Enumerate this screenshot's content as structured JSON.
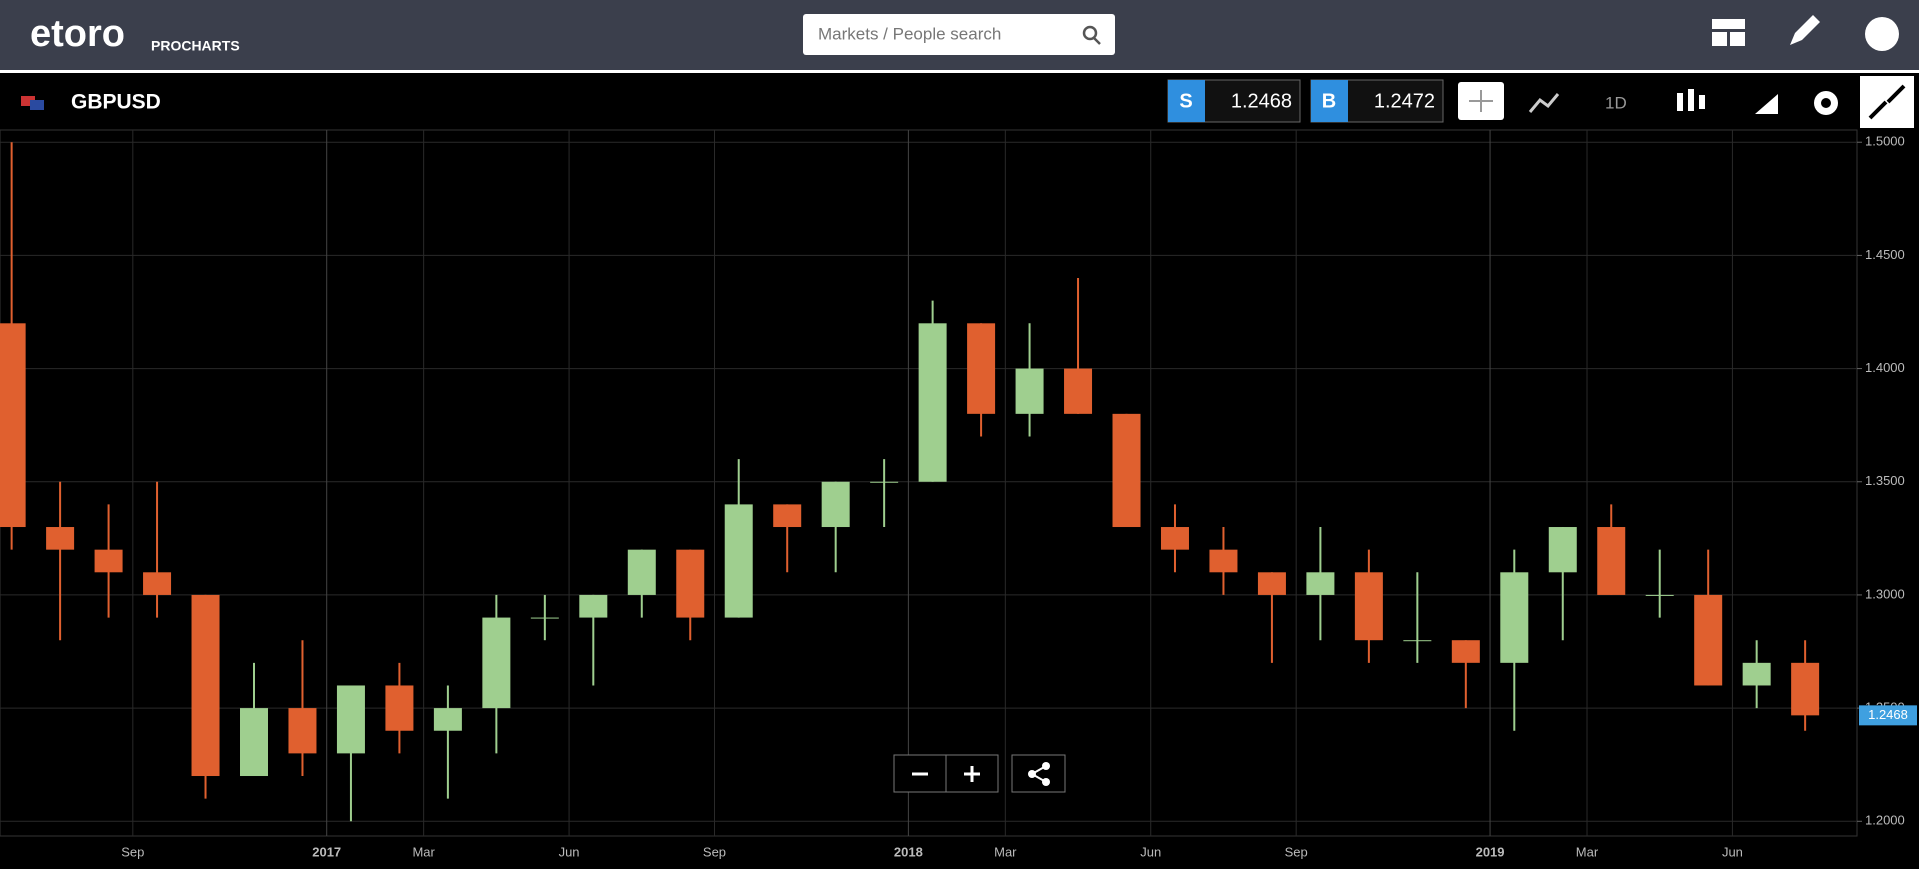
{
  "header": {
    "logo": "etoro",
    "product": "PROCHARTS",
    "search_placeholder": "Markets / People search"
  },
  "toolbar": {
    "symbol": "GBPUSD",
    "sell": {
      "label": "S",
      "price": "1.2468"
    },
    "buy": {
      "label": "B",
      "price": "1.2472"
    },
    "interval": "1D"
  },
  "chart_data": {
    "type": "candlestick",
    "x": [
      5.5,
      6.5,
      7.5,
      8.5,
      9.5,
      10.5,
      11.5,
      12.5,
      13.5,
      14.5,
      15.5,
      16.5,
      17.5,
      18.5,
      19.5,
      20.5,
      21.5,
      22.5,
      23.5,
      24.5,
      25.5,
      26.5,
      27.5,
      28.5,
      29.5,
      30.5,
      31.5,
      32.5,
      33.5,
      34.5,
      35.5,
      36.5,
      37.5,
      38.5,
      39.5,
      40.5,
      41.5,
      42.5
    ],
    "open": [
      1.42,
      1.33,
      1.32,
      1.31,
      1.3,
      1.22,
      1.25,
      1.23,
      1.26,
      1.24,
      1.25,
      1.29,
      1.29,
      1.3,
      1.32,
      1.29,
      1.34,
      1.33,
      1.35,
      1.35,
      1.42,
      1.38,
      1.4,
      1.38,
      1.33,
      1.32,
      1.31,
      1.3,
      1.31,
      1.28,
      1.28,
      1.27,
      1.31,
      1.33,
      1.3,
      1.3,
      1.26,
      1.27
    ],
    "high": [
      1.5,
      1.35,
      1.34,
      1.35,
      1.3,
      1.27,
      1.28,
      1.26,
      1.27,
      1.26,
      1.3,
      1.3,
      1.3,
      1.32,
      1.32,
      1.36,
      1.34,
      1.35,
      1.36,
      1.43,
      1.42,
      1.42,
      1.44,
      1.38,
      1.34,
      1.33,
      1.31,
      1.33,
      1.32,
      1.31,
      1.28,
      1.32,
      1.33,
      1.34,
      1.32,
      1.32,
      1.28,
      1.28
    ],
    "low": [
      1.32,
      1.28,
      1.29,
      1.29,
      1.21,
      1.22,
      1.22,
      1.2,
      1.23,
      1.21,
      1.23,
      1.28,
      1.26,
      1.29,
      1.28,
      1.29,
      1.31,
      1.31,
      1.33,
      1.35,
      1.37,
      1.37,
      1.38,
      1.33,
      1.31,
      1.3,
      1.27,
      1.28,
      1.27,
      1.27,
      1.25,
      1.24,
      1.28,
      1.3,
      1.29,
      1.26,
      1.25,
      1.24
    ],
    "close": [
      1.33,
      1.32,
      1.31,
      1.3,
      1.22,
      1.25,
      1.23,
      1.26,
      1.24,
      1.25,
      1.29,
      1.29,
      1.3,
      1.32,
      1.29,
      1.34,
      1.33,
      1.35,
      1.35,
      1.42,
      1.38,
      1.4,
      1.38,
      1.33,
      1.32,
      1.31,
      1.3,
      1.31,
      1.28,
      1.28,
      1.27,
      1.31,
      1.33,
      1.3,
      1.3,
      1.26,
      1.27,
      1.2468
    ],
    "up_color": "#9fcf8f",
    "down_color": "#e0602f",
    "xlim": [
      5.26,
      43.57
    ],
    "xticks": [
      {
        "value": 8,
        "label": "Sep"
      },
      {
        "value": 12,
        "label": "2017"
      },
      {
        "value": 14,
        "label": "Mar"
      },
      {
        "value": 17,
        "label": "Jun"
      },
      {
        "value": 20,
        "label": "Sep"
      },
      {
        "value": 24,
        "label": "2018"
      },
      {
        "value": 26,
        "label": "Mar"
      },
      {
        "value": 29,
        "label": "Jun"
      },
      {
        "value": 32,
        "label": "Sep"
      },
      {
        "value": 36,
        "label": "2019"
      },
      {
        "value": 38,
        "label": "Mar"
      },
      {
        "value": 41,
        "label": "Jun"
      }
    ],
    "ylim": [
      1.1935,
      1.5054
    ],
    "yticks": [
      {
        "value": 1.2,
        "label": "1.2000"
      },
      {
        "value": 1.25,
        "label": "1.2500"
      },
      {
        "value": 1.3,
        "label": "1.3000"
      },
      {
        "value": 1.35,
        "label": "1.3500"
      },
      {
        "value": 1.4,
        "label": "1.4000"
      },
      {
        "value": 1.45,
        "label": "1.4500"
      },
      {
        "value": 1.5,
        "label": "1.5000"
      }
    ],
    "grid": true,
    "last_price": 1.2468
  }
}
